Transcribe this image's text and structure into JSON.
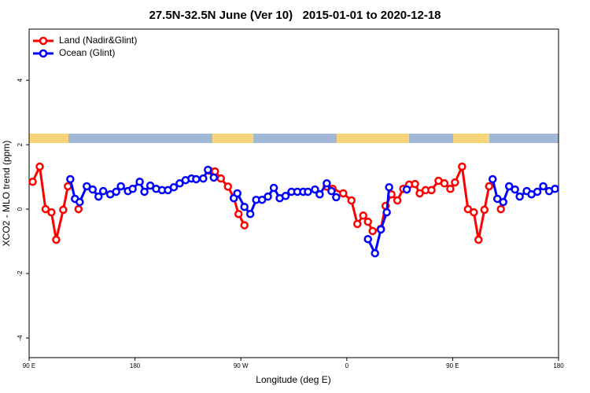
{
  "chart_data": {
    "type": "line",
    "title": "27.5N-32.5N June (Ver 10)   2015-01-01 to 2020-12-18",
    "x_label": "Longitude (deg E)",
    "y_label": "XCO2 - MLO trend (ppm)",
    "xlim": [
      90,
      540
    ],
    "xticks": [
      {
        "value": 90,
        "label": "90 E"
      },
      180,
      {
        "value": 270,
        "label": "90 W"
      },
      {
        "value": 360,
        "label": "0"
      },
      {
        "value": 450,
        "label": "90 E"
      },
      {
        "value": 540,
        "label": "180"
      }
    ],
    "ylim": [
      -4.61,
      5.59
    ],
    "yticks": [
      4,
      2,
      0,
      -2,
      -4
    ],
    "legend": "topleft",
    "series": [
      {
        "name": "Land (Nadir&Glint)",
        "color": "#ff0000",
        "x": [
          93,
          99,
          104,
          109,
          113,
          119,
          123,
          null,
          132,
          null,
          243,
          248,
          253,
          259,
          264,
          268,
          273,
          null,
          343,
          348,
          357,
          364,
          369,
          374,
          378,
          382,
          389,
          393,
          398,
          403,
          408,
          413,
          418,
          422,
          427,
          432,
          438,
          443,
          448,
          452,
          458,
          463,
          468,
          472,
          477,
          481,
          null,
          491
        ],
        "values": [
          0.85,
          1.32,
          0.0,
          -0.1,
          -0.95,
          -0.02,
          0.71,
          null,
          0.0,
          null,
          1.2,
          1.17,
          0.95,
          0.7,
          0.35,
          -0.15,
          -0.5,
          null,
          0.7,
          0.63,
          0.49,
          0.27,
          -0.46,
          -0.2,
          -0.39,
          -0.68,
          -0.61,
          0.1,
          0.46,
          0.27,
          0.63,
          0.76,
          0.78,
          0.49,
          0.59,
          0.59,
          0.88,
          0.8,
          0.63,
          0.83,
          1.32,
          0.0,
          -0.1,
          -0.95,
          -0.02,
          0.71,
          null,
          0.0
        ]
      },
      {
        "name": "Ocean (Glint)",
        "color": "#0000ff",
        "x": [
          125,
          129,
          133,
          139,
          144,
          149,
          153,
          159,
          164,
          168,
          174,
          178,
          184,
          188,
          193,
          198,
          203,
          208,
          213,
          218,
          223,
          228,
          232,
          238,
          242,
          247,
          null,
          264,
          267,
          273,
          278,
          283,
          288,
          293,
          298,
          303,
          308,
          313,
          318,
          323,
          327,
          333,
          337,
          343,
          347,
          351,
          null,
          378,
          384,
          389,
          394,
          396,
          null,
          411,
          null,
          484,
          488,
          493,
          498,
          503,
          507,
          513,
          517,
          522,
          527,
          532,
          537
        ],
        "values": [
          0.93,
          0.32,
          0.22,
          0.71,
          0.61,
          0.39,
          0.56,
          0.46,
          0.54,
          0.71,
          0.56,
          0.63,
          0.85,
          0.54,
          0.73,
          0.63,
          0.59,
          0.59,
          0.68,
          0.8,
          0.9,
          0.95,
          0.93,
          0.95,
          1.22,
          0.98,
          null,
          0.34,
          0.49,
          0.07,
          -0.15,
          0.29,
          0.29,
          0.39,
          0.66,
          0.34,
          0.41,
          0.54,
          0.54,
          0.54,
          0.54,
          0.61,
          0.46,
          0.8,
          0.56,
          0.37,
          null,
          -0.93,
          -1.37,
          -0.63,
          -0.1,
          0.68,
          null,
          0.61,
          null,
          0.93,
          0.32,
          0.22,
          0.71,
          0.61,
          0.39,
          0.56,
          0.46,
          0.54,
          0.71,
          0.56,
          0.63
        ]
      }
    ]
  }
}
